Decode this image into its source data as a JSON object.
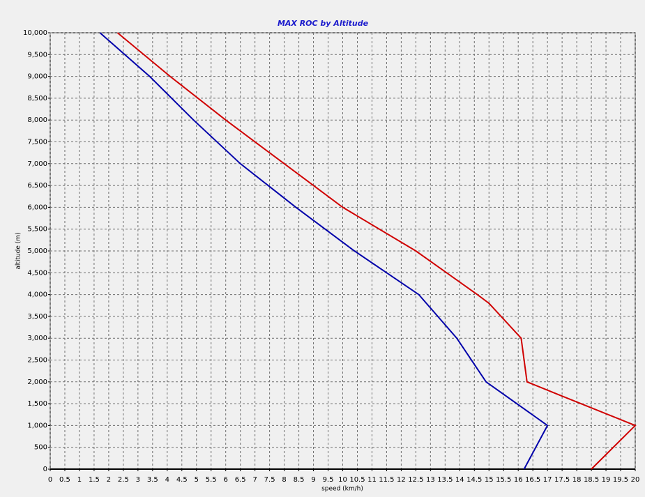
{
  "chart_data": {
    "type": "line",
    "title": "MAX ROC by Altitude",
    "x_label": "speed (km/h)",
    "y_label": "altitude (m)",
    "xlim": [
      0,
      20
    ],
    "ylim": [
      0,
      10000
    ],
    "xticks": [
      0,
      0.5,
      1,
      1.5,
      2,
      2.5,
      3,
      3.5,
      4,
      4.5,
      5,
      5.5,
      6,
      6.5,
      7,
      7.5,
      8,
      8.5,
      9,
      9.5,
      10,
      10.5,
      11,
      11.5,
      12,
      12.5,
      13,
      13.5,
      14,
      14.5,
      15,
      15.5,
      16,
      16.5,
      17,
      17.5,
      18,
      18.5,
      19,
      19.5,
      20
    ],
    "yticks": [
      0,
      500,
      {
        "value": 1000,
        "label": "1,000"
      },
      {
        "value": 1500,
        "label": "1,500"
      },
      {
        "value": 2000,
        "label": "2,000"
      },
      {
        "value": 2500,
        "label": "2,500"
      },
      {
        "value": 3000,
        "label": "3,000"
      },
      {
        "value": 3500,
        "label": "3,500"
      },
      {
        "value": 4000,
        "label": "4,000"
      },
      {
        "value": 4500,
        "label": "4,500"
      },
      {
        "value": 5000,
        "label": "5,000"
      },
      {
        "value": 5500,
        "label": "5,500"
      },
      {
        "value": 6000,
        "label": "6,000"
      },
      {
        "value": 6500,
        "label": "6,500"
      },
      {
        "value": 7000,
        "label": "7,000"
      },
      {
        "value": 7500,
        "label": "7,500"
      },
      {
        "value": 8000,
        "label": "8,000"
      },
      {
        "value": 8500,
        "label": "8,500"
      },
      {
        "value": 9000,
        "label": "9,000"
      },
      {
        "value": 9500,
        "label": "9,500"
      },
      {
        "value": 10000,
        "label": "10,000"
      }
    ],
    "grid": true,
    "series": [
      {
        "color": "#0000aa",
        "x": [
          16.2,
          17,
          14.9,
          13.9,
          12.6,
          10.4,
          8.4,
          6.5,
          4.9,
          3.4,
          1.7
        ],
        "values": [
          0,
          1000,
          2000,
          3000,
          4000,
          5000,
          6000,
          7000,
          8000,
          9000,
          10000
        ]
      },
      {
        "color": "#d00000",
        "x": [
          18.5,
          20,
          17.4,
          16.3,
          16.1,
          15,
          14.6,
          12.5,
          10,
          8,
          6,
          4.1,
          2.3
        ],
        "values": [
          0,
          1000,
          1700,
          2000,
          3000,
          3800,
          4000,
          5000,
          6000,
          7000,
          8000,
          9000,
          10000
        ]
      }
    ]
  }
}
